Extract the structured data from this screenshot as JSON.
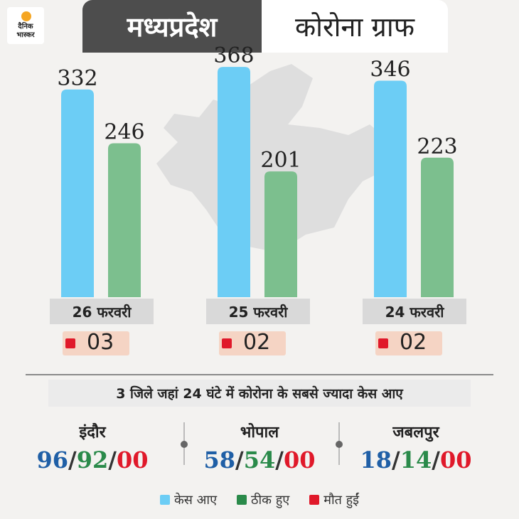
{
  "brand": {
    "line1": "दैनिक",
    "line2": "भास्कर"
  },
  "title": {
    "left": "मध्यप्रदेश",
    "right": "कोरोना ग्राफ"
  },
  "colors": {
    "cases": "#6ccdf5",
    "recovered": "#7cbf8e",
    "deaths": "#e0192a"
  },
  "chart_data": {
    "type": "bar",
    "categories": [
      "26 फरवरी",
      "25 फरवरी",
      "24 फरवरी"
    ],
    "series": [
      {
        "name": "केस आए",
        "values": [
          332,
          368,
          346
        ]
      },
      {
        "name": "ठीक हुए",
        "values": [
          246,
          201,
          223
        ]
      }
    ],
    "deaths": [
      "03",
      "02",
      "02"
    ],
    "ylim": [
      0,
      400
    ],
    "grid": false,
    "legend": "bottom"
  },
  "districts": {
    "heading": "3 जिले जहां 24 घंटे में कोरोना के सबसे ज्यादा केस आए",
    "items": [
      {
        "name": "इंदौर",
        "cases": "96",
        "recovered": "92",
        "deaths": "00"
      },
      {
        "name": "भोपाल",
        "cases": "58",
        "recovered": "54",
        "deaths": "00"
      },
      {
        "name": "जबलपुर",
        "cases": "18",
        "recovered": "14",
        "deaths": "00"
      }
    ]
  },
  "legend": [
    {
      "label": "केस आए",
      "color": "#6ccdf5"
    },
    {
      "label": "ठीक हुए",
      "color": "#2a8a4a"
    },
    {
      "label": "मौत हुईं",
      "color": "#e0192a"
    }
  ]
}
